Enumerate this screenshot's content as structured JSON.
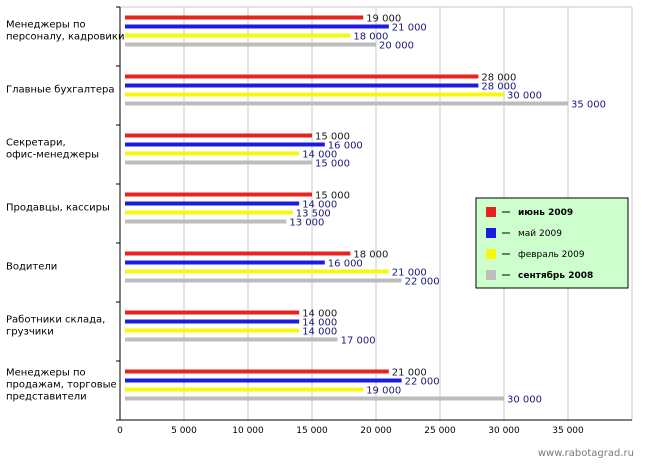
{
  "chart_data": {
    "type": "bar",
    "orientation": "horizontal",
    "categories": [
      [
        "Менеджеры по",
        "персоналу, кадровики"
      ],
      [
        "Главные бухгалтера"
      ],
      [
        "Секретари,",
        "офис-менеджеры"
      ],
      [
        "Продавцы, кассиры"
      ],
      [
        "Водители"
      ],
      [
        "Работники склада,",
        "грузчики"
      ],
      [
        "Менеджеры по",
        "продажам, торговые",
        "представители"
      ]
    ],
    "series": [
      {
        "name": "июнь 2009",
        "color": "#e8231f",
        "bold": true,
        "values": [
          19000,
          28000,
          15000,
          15000,
          18000,
          14000,
          21000
        ],
        "labels": [
          "19 000",
          "28 000",
          "15 000",
          "15 000",
          "18 000",
          "14 000",
          "21 000"
        ]
      },
      {
        "name": "май 2009",
        "color": "#1c1ce0",
        "bold": false,
        "values": [
          21000,
          28000,
          16000,
          14000,
          16000,
          14000,
          22000
        ],
        "labels": [
          "21 000",
          "28 000",
          "16 000",
          "14 000",
          "16 000",
          "14 000",
          "22 000"
        ]
      },
      {
        "name": "февраль 2009",
        "color": "#f7f70f",
        "bold": false,
        "values": [
          18000,
          30000,
          14000,
          13500,
          21000,
          14000,
          19000
        ],
        "labels": [
          "18 000",
          "30 000",
          "14 000",
          "13 500",
          "21 000",
          "14 000",
          "19 000"
        ]
      },
      {
        "name": "сентябрь 2008",
        "color": "#bdbdbd",
        "bold": true,
        "values": [
          20000,
          35000,
          15000,
          13000,
          22000,
          17000,
          30000
        ],
        "labels": [
          "20 000",
          "35 000",
          "15 000",
          "13 000",
          "22 000",
          "17 000",
          "30 000"
        ]
      }
    ],
    "x_ticks": [
      0,
      5000,
      10000,
      15000,
      20000,
      25000,
      30000,
      35000
    ],
    "x_tick_labels": [
      "0",
      "5 000",
      "10 000",
      "15 000",
      "20 000",
      "25 000",
      "30 000",
      "35 000"
    ],
    "xlim": [
      0,
      40000
    ],
    "grid": true,
    "legend_position": "right"
  },
  "watermark": "www.rabotagrad.ru"
}
